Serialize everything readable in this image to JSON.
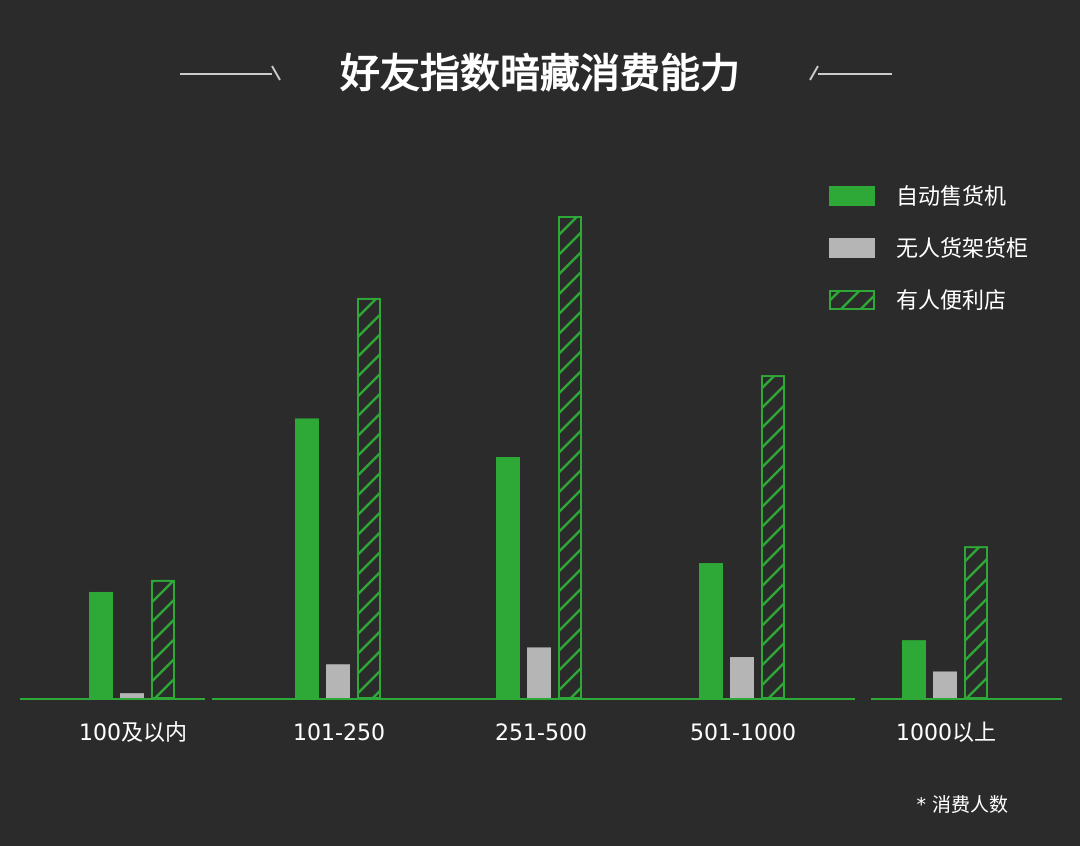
{
  "colors": {
    "background": "#2b2b2b",
    "vending": "#2ea836",
    "shelf": "#b5b5b5",
    "store_stroke": "#2ea836",
    "axis": "#2ea836"
  },
  "footnote": "* 消费人数",
  "chart_data": {
    "type": "bar",
    "title": "好友指数暗藏消费能力",
    "xlabel": "",
    "ylabel": "",
    "ylim": [
      0,
      100
    ],
    "grid": false,
    "legend_position": "top-right",
    "categories": [
      "100及以内",
      "101-250",
      "251-500",
      "501-1000",
      "1000以上"
    ],
    "series": [
      {
        "name": "自动售货机",
        "style": "solid-green",
        "values": [
          22,
          58,
          50,
          28,
          12
        ]
      },
      {
        "name": "无人货架货柜",
        "style": "solid-gray",
        "values": [
          1,
          7,
          10.5,
          8.5,
          5.5
        ]
      },
      {
        "name": "有人便利店",
        "style": "hatched-green",
        "values": [
          24.5,
          83,
          100,
          67,
          31.5
        ]
      }
    ]
  }
}
